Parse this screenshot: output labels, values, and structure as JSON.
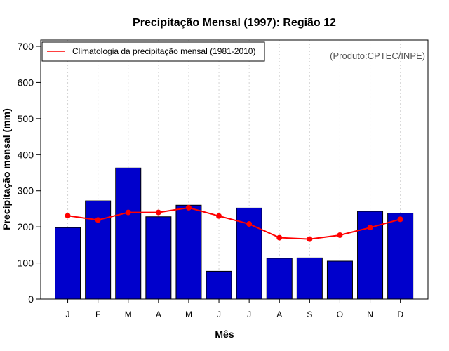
{
  "chart_data": {
    "type": "bar",
    "title": "Precipitação Mensal (1997): Região 12",
    "xlabel": "Mês",
    "ylabel": "Precipitação mensal (mm)",
    "ylim": [
      0,
      700
    ],
    "yticks": [
      0,
      100,
      200,
      300,
      400,
      500,
      600,
      700
    ],
    "categories": [
      "J",
      "F",
      "M",
      "A",
      "M",
      "J",
      "J",
      "A",
      "S",
      "O",
      "N",
      "D"
    ],
    "series": [
      {
        "name": "Precipitação mensal (1997)",
        "kind": "bar",
        "color": "#0000CC",
        "values": [
          198,
          272,
          363,
          228,
          260,
          77,
          252,
          113,
          114,
          105,
          243,
          238
        ]
      },
      {
        "name": "Climatologia da precipitação mensal (1981-2010)",
        "kind": "line",
        "color": "#FF0000",
        "values": [
          231,
          219,
          240,
          240,
          253,
          230,
          208,
          170,
          166,
          177,
          198,
          221
        ]
      }
    ],
    "legend": {
      "position": "top-left",
      "entries": [
        "Climatologia da precipitação mensal (1981-2010)"
      ]
    },
    "grid": "vertical dotted",
    "credit": "(Produto:CPTEC/INPE)"
  }
}
